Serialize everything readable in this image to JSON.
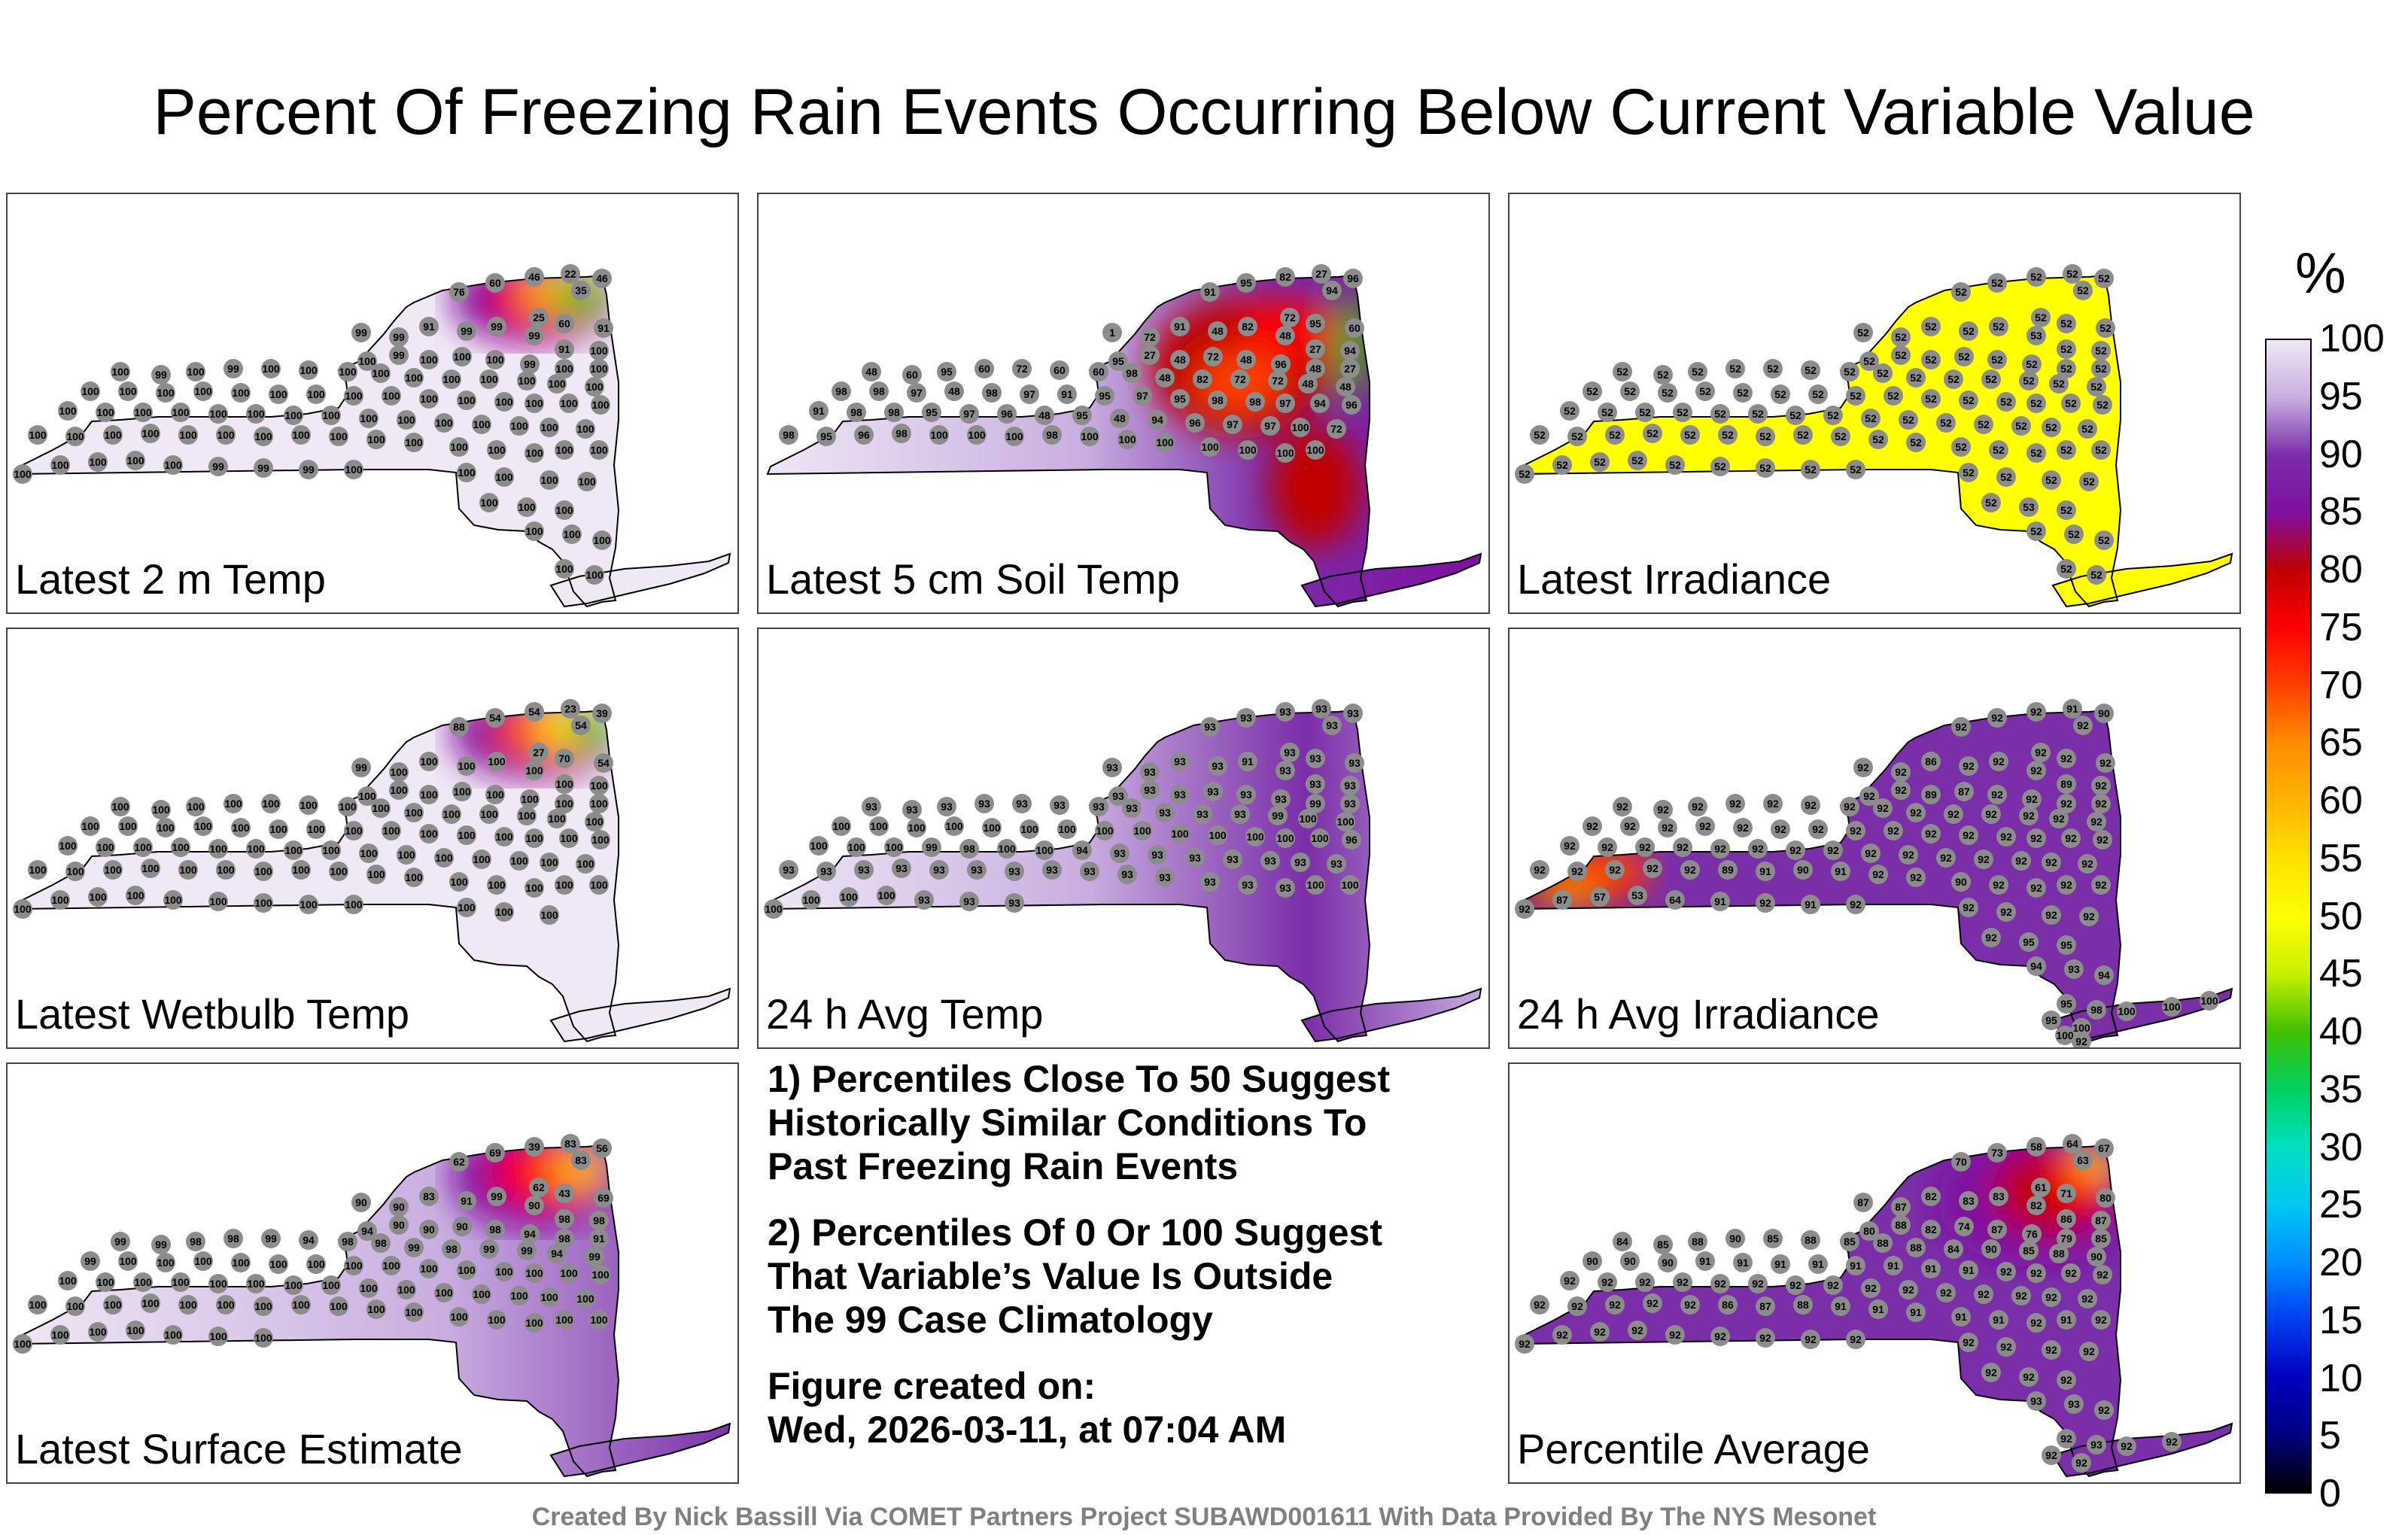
{
  "title": "Percent Of Freezing Rain Events Occurring Below Current Variable Value",
  "panels": [
    {
      "id": "p1",
      "label": "Latest 2 m Temp",
      "theme": "t2m"
    },
    {
      "id": "p2",
      "label": "Latest 5 cm Soil Temp",
      "theme": "soil"
    },
    {
      "id": "p3",
      "label": "Latest Irradiance",
      "theme": "irr"
    },
    {
      "id": "p4",
      "label": "Latest Wetbulb Temp",
      "theme": "wb"
    },
    {
      "id": "p5",
      "label": "24 h Avg Temp",
      "theme": "avgt"
    },
    {
      "id": "p6",
      "label": "24 h Avg Irradiance",
      "theme": "avgirr"
    },
    {
      "id": "p7",
      "label": "Latest Surface Estimate",
      "theme": "sfc"
    },
    {
      "id": "p9",
      "label": "Percentile Average",
      "theme": "avg"
    }
  ],
  "notes": {
    "note1": "1) Percentiles Close To 50 Suggest\nHistorically Similar Conditions To\nPast Freezing Rain Events",
    "note2": "2) Percentiles Of 0 Or 100 Suggest\nThat Variable’s Value Is Outside\nThe 99 Case Climatology",
    "created_label": "Figure created on:",
    "created_date": "Wed, 2026-03-11, at 07:04 AM"
  },
  "colorbar": {
    "unit": "%",
    "ticks": [
      "100",
      "95",
      "90",
      "85",
      "80",
      "75",
      "70",
      "65",
      "60",
      "55",
      "50",
      "45",
      "40",
      "35",
      "30",
      "25",
      "20",
      "15",
      "10",
      "5",
      "0"
    ],
    "colors": {
      "c100": "#f0e8f4",
      "c95": "#c8aee0",
      "c90": "#7a2ea8",
      "c85": "#7f0fa0",
      "c80": "#c00000",
      "c75": "#ff0000",
      "c70": "#ff4000",
      "c65": "#ff8c00",
      "c60": "#ffb400",
      "c55": "#ffe000",
      "c50": "#ffff00",
      "c45": "#c8f000",
      "c40": "#40c000",
      "c35": "#00d060",
      "c30": "#00e0c0",
      "c25": "#00c8f0",
      "c20": "#0090ff",
      "c15": "#0040f0",
      "c10": "#0000c0",
      "c5": "#000080",
      "c0": "#000000"
    }
  },
  "stations": {
    "p1": [
      "60",
      "76",
      "46",
      "22",
      "35",
      "46",
      "25",
      "60",
      "91",
      "99",
      "99",
      "91",
      "99",
      "99",
      "99",
      "91",
      "100",
      "100",
      "99",
      "100",
      "100",
      "100",
      "99",
      "100",
      "100",
      "100",
      "99",
      "100",
      "99",
      "100",
      "100",
      "100",
      "100",
      "100",
      "100",
      "100",
      "100",
      "100",
      "100",
      "100",
      "100",
      "100",
      "100",
      "100",
      "100",
      "100",
      "100",
      "100",
      "100",
      "100",
      "100",
      "100",
      "100",
      "100",
      "100",
      "100",
      "100",
      "100",
      "100",
      "100",
      "100",
      "100",
      "100",
      "100",
      "100",
      "100",
      "100",
      "100",
      "100",
      "100",
      "100",
      "100",
      "100",
      "100",
      "100",
      "100",
      "100",
      "100",
      "100",
      "100",
      "100",
      "100",
      "100",
      "100",
      "100",
      "100",
      "100",
      "100",
      "100",
      "100",
      "99",
      "99",
      "99",
      "100",
      "100",
      "100",
      "100",
      "100",
      "100",
      "100",
      "100",
      "100",
      "100",
      "100",
      "100",
      "100"
    ],
    "p2": [
      "95",
      "91",
      "82",
      "27",
      "94",
      "96",
      "72",
      "95",
      "60",
      "1",
      "72",
      "91",
      "48",
      "82",
      "48",
      "27",
      "94",
      "95",
      "27",
      "48",
      "72",
      "48",
      "96",
      "48",
      "27",
      "48",
      "60",
      "95",
      "60",
      "72",
      "60",
      "60",
      "98",
      "48",
      "82",
      "72",
      "72",
      "48",
      "48",
      "98",
      "98",
      "97",
      "48",
      "98",
      "97",
      "91",
      "95",
      "97",
      "95",
      "98",
      "98",
      "97",
      "94",
      "96",
      "91",
      "98",
      "98",
      "95",
      "97",
      "96",
      "48",
      "95",
      "48",
      "94",
      "96",
      "97",
      "97",
      "100",
      "72",
      "98",
      "95",
      "96",
      "98",
      "100",
      "100",
      "100",
      "98",
      "100",
      "100",
      "100",
      "100",
      "100",
      "100",
      "100"
    ],
    "p3": [
      "52",
      "52",
      "52",
      "52",
      "52",
      "52",
      "52",
      "52",
      "52",
      "52",
      "52",
      "52",
      "52",
      "52",
      "53",
      "52",
      "52",
      "52",
      "52",
      "52",
      "52",
      "52",
      "52",
      "52",
      "52",
      "52",
      "52",
      "52",
      "52",
      "52",
      "52",
      "52",
      "52",
      "52",
      "52",
      "52",
      "52",
      "52",
      "52",
      "52",
      "52",
      "52",
      "52",
      "52",
      "52",
      "52",
      "52",
      "52",
      "52",
      "52",
      "52",
      "52",
      "52",
      "52",
      "52",
      "52",
      "52",
      "52",
      "52",
      "52",
      "52",
      "52",
      "52",
      "52",
      "52",
      "52",
      "52",
      "52",
      "52",
      "52",
      "52",
      "52",
      "52",
      "52",
      "52",
      "52",
      "52",
      "52",
      "52",
      "52",
      "52",
      "52",
      "52",
      "52",
      "52",
      "52",
      "52",
      "52",
      "52",
      "52",
      "52",
      "52",
      "52",
      "52",
      "52",
      "52",
      "52",
      "52",
      "52",
      "53",
      "52",
      "52",
      "52",
      "52",
      "52",
      "52"
    ],
    "p4": [
      "54",
      "88",
      "54",
      "23",
      "54",
      "39",
      "27",
      "70",
      "54",
      "99",
      "100",
      "100",
      "100",
      "100",
      "100",
      "100",
      "100",
      "100",
      "100",
      "100",
      "100",
      "100",
      "100",
      "100",
      "100",
      "100",
      "100",
      "100",
      "100",
      "100",
      "100",
      "100",
      "100",
      "100",
      "100",
      "100",
      "100",
      "100",
      "100",
      "100",
      "100",
      "100",
      "100",
      "100",
      "100",
      "100",
      "100",
      "100",
      "100",
      "100",
      "100",
      "100",
      "100",
      "100",
      "100",
      "100",
      "100",
      "100",
      "100",
      "100",
      "100",
      "100",
      "100",
      "100",
      "100",
      "100",
      "100",
      "100",
      "100",
      "100",
      "100",
      "100",
      "100",
      "100",
      "100",
      "100",
      "100",
      "100",
      "100",
      "100",
      "100",
      "100",
      "100",
      "100",
      "100",
      "100",
      "100",
      "100",
      "100",
      "100",
      "100",
      "100",
      "100",
      "100",
      "100",
      "100",
      "100"
    ],
    "p5": [
      "93",
      "93",
      "93",
      "93",
      "93",
      "93",
      "93",
      "93",
      "93",
      "93",
      "93",
      "93",
      "93",
      "91",
      "93",
      "93",
      "93",
      "93",
      "93",
      "93",
      "93",
      "93",
      "93",
      "99",
      "93",
      "93",
      "93",
      "93",
      "93",
      "93",
      "93",
      "93",
      "93",
      "93",
      "93",
      "93",
      "99",
      "100",
      "100",
      "100",
      "100",
      "100",
      "100",
      "100",
      "100",
      "100",
      "100",
      "100",
      "100",
      "100",
      "100",
      "100",
      "100",
      "96",
      "100",
      "100",
      "100",
      "99",
      "98",
      "100",
      "100",
      "94",
      "93",
      "93",
      "93",
      "93",
      "93",
      "93",
      "93",
      "93",
      "93",
      "93",
      "93",
      "93",
      "93",
      "93",
      "93",
      "93",
      "93",
      "93",
      "93",
      "93",
      "93",
      "100",
      "100",
      "100",
      "100",
      "100",
      "100",
      "93",
      "93",
      "93"
    ],
    "p6": [
      "92",
      "92",
      "92",
      "91",
      "92",
      "90",
      "92",
      "92",
      "92",
      "92",
      "92",
      "86",
      "92",
      "92",
      "92",
      "89",
      "92",
      "92",
      "92",
      "89",
      "87",
      "92",
      "92",
      "92",
      "92",
      "92",
      "92",
      "92",
      "92",
      "92",
      "92",
      "92",
      "92",
      "92",
      "92",
      "92",
      "92",
      "92",
      "92",
      "92",
      "92",
      "92",
      "92",
      "92",
      "92",
      "92",
      "92",
      "92",
      "92",
      "92",
      "92",
      "92",
      "92",
      "92",
      "92",
      "92",
      "92",
      "92",
      "92",
      "92",
      "92",
      "92",
      "92",
      "92",
      "92",
      "92",
      "92",
      "92",
      "92",
      "92",
      "92",
      "92",
      "92",
      "92",
      "89",
      "91",
      "90",
      "91",
      "92",
      "92",
      "90",
      "92",
      "92",
      "92",
      "92",
      "92",
      "87",
      "57",
      "53",
      "64",
      "91",
      "92",
      "91",
      "92",
      "92",
      "92",
      "92",
      "92",
      "92",
      "95",
      "95",
      "94",
      "93",
      "94",
      "95",
      "98",
      "95",
      "100",
      "100",
      "100",
      "100",
      "100",
      "92"
    ],
    "p7": [
      "69",
      "62",
      "39",
      "83",
      "83",
      "56",
      "62",
      "43",
      "69",
      "90",
      "90",
      "83",
      "91",
      "99",
      "90",
      "98",
      "98",
      "94",
      "90",
      "90",
      "90",
      "98",
      "94",
      "98",
      "91",
      "99",
      "99",
      "98",
      "98",
      "99",
      "94",
      "98",
      "98",
      "99",
      "98",
      "99",
      "99",
      "94",
      "99",
      "99",
      "100",
      "100",
      "100",
      "100",
      "100",
      "100",
      "100",
      "100",
      "100",
      "100",
      "100",
      "100",
      "100",
      "100",
      "100",
      "100",
      "100",
      "100",
      "100",
      "100",
      "100",
      "100",
      "100",
      "100",
      "100",
      "100",
      "100",
      "100",
      "100",
      "100",
      "100",
      "100",
      "100",
      "100",
      "100",
      "100",
      "100",
      "100",
      "100",
      "100",
      "100",
      "100",
      "100",
      "100",
      "100",
      "100",
      "100",
      "100",
      "100",
      "100",
      "100",
      "100"
    ],
    "p9": [
      "73",
      "70",
      "58",
      "64",
      "63",
      "67",
      "61",
      "71",
      "80",
      "87",
      "87",
      "82",
      "83",
      "83",
      "82",
      "86",
      "87",
      "80",
      "88",
      "82",
      "74",
      "87",
      "76",
      "79",
      "85",
      "84",
      "85",
      "88",
      "90",
      "85",
      "88",
      "85",
      "88",
      "88",
      "84",
      "90",
      "85",
      "88",
      "90",
      "90",
      "90",
      "90",
      "91",
      "91",
      "91",
      "91",
      "91",
      "91",
      "91",
      "91",
      "92",
      "92",
      "92",
      "92",
      "92",
      "92",
      "92",
      "92",
      "92",
      "92",
      "92",
      "92",
      "92",
      "92",
      "92",
      "92",
      "92",
      "92",
      "92",
      "92",
      "92",
      "92",
      "92",
      "92",
      "86",
      "87",
      "88",
      "91",
      "91",
      "91",
      "91",
      "91",
      "92",
      "91",
      "92",
      "92",
      "92",
      "92",
      "92",
      "92",
      "92",
      "92",
      "92",
      "92",
      "92",
      "92",
      "92",
      "92",
      "92",
      "92",
      "92",
      "93",
      "93",
      "92",
      "92",
      "93",
      "92",
      "92",
      "92",
      "92"
    ]
  },
  "footer": "Created By Nick Bassill Via COMET Partners Project SUBAWD001611 With Data Provided By The NYS Mesonet"
}
